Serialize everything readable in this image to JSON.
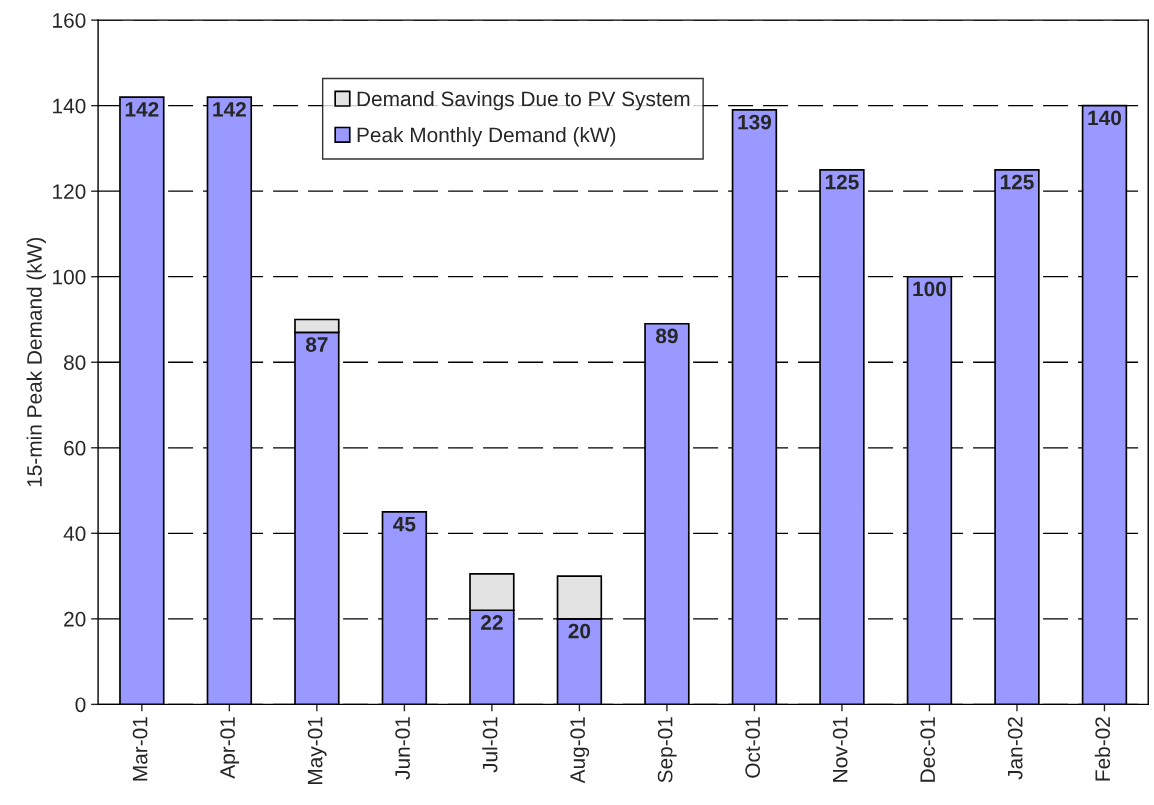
{
  "chart_data": {
    "type": "bar",
    "stacked": true,
    "ylabel": "15-min Peak Demand (kW)",
    "categories": [
      "Mar-01",
      "Apr-01",
      "May-01",
      "Jun-01",
      "Jul-01",
      "Aug-01",
      "Sep-01",
      "Oct-01",
      "Nov-01",
      "Dec-01",
      "Jan-02",
      "Feb-02"
    ],
    "series": [
      {
        "name": "Peak Monthly Demand (kW)",
        "color": "#9999ff",
        "values": [
          142,
          142,
          87,
          45,
          22,
          20,
          89,
          139,
          125,
          100,
          125,
          140
        ],
        "value_labels": [
          "142",
          "142",
          "87",
          "45",
          "22",
          "20",
          "89",
          "139",
          "125",
          "100",
          "125",
          "140"
        ]
      },
      {
        "name": "Demand Savings Due to PV System",
        "color": "#e3e3e3",
        "values": [
          null,
          null,
          3,
          null,
          8.5,
          10,
          null,
          null,
          null,
          null,
          null,
          null
        ]
      }
    ],
    "ylim": [
      0,
      160
    ],
    "yticks": [
      0,
      20,
      40,
      60,
      80,
      100,
      120,
      140,
      160
    ],
    "grid": "y",
    "legend": "top"
  }
}
